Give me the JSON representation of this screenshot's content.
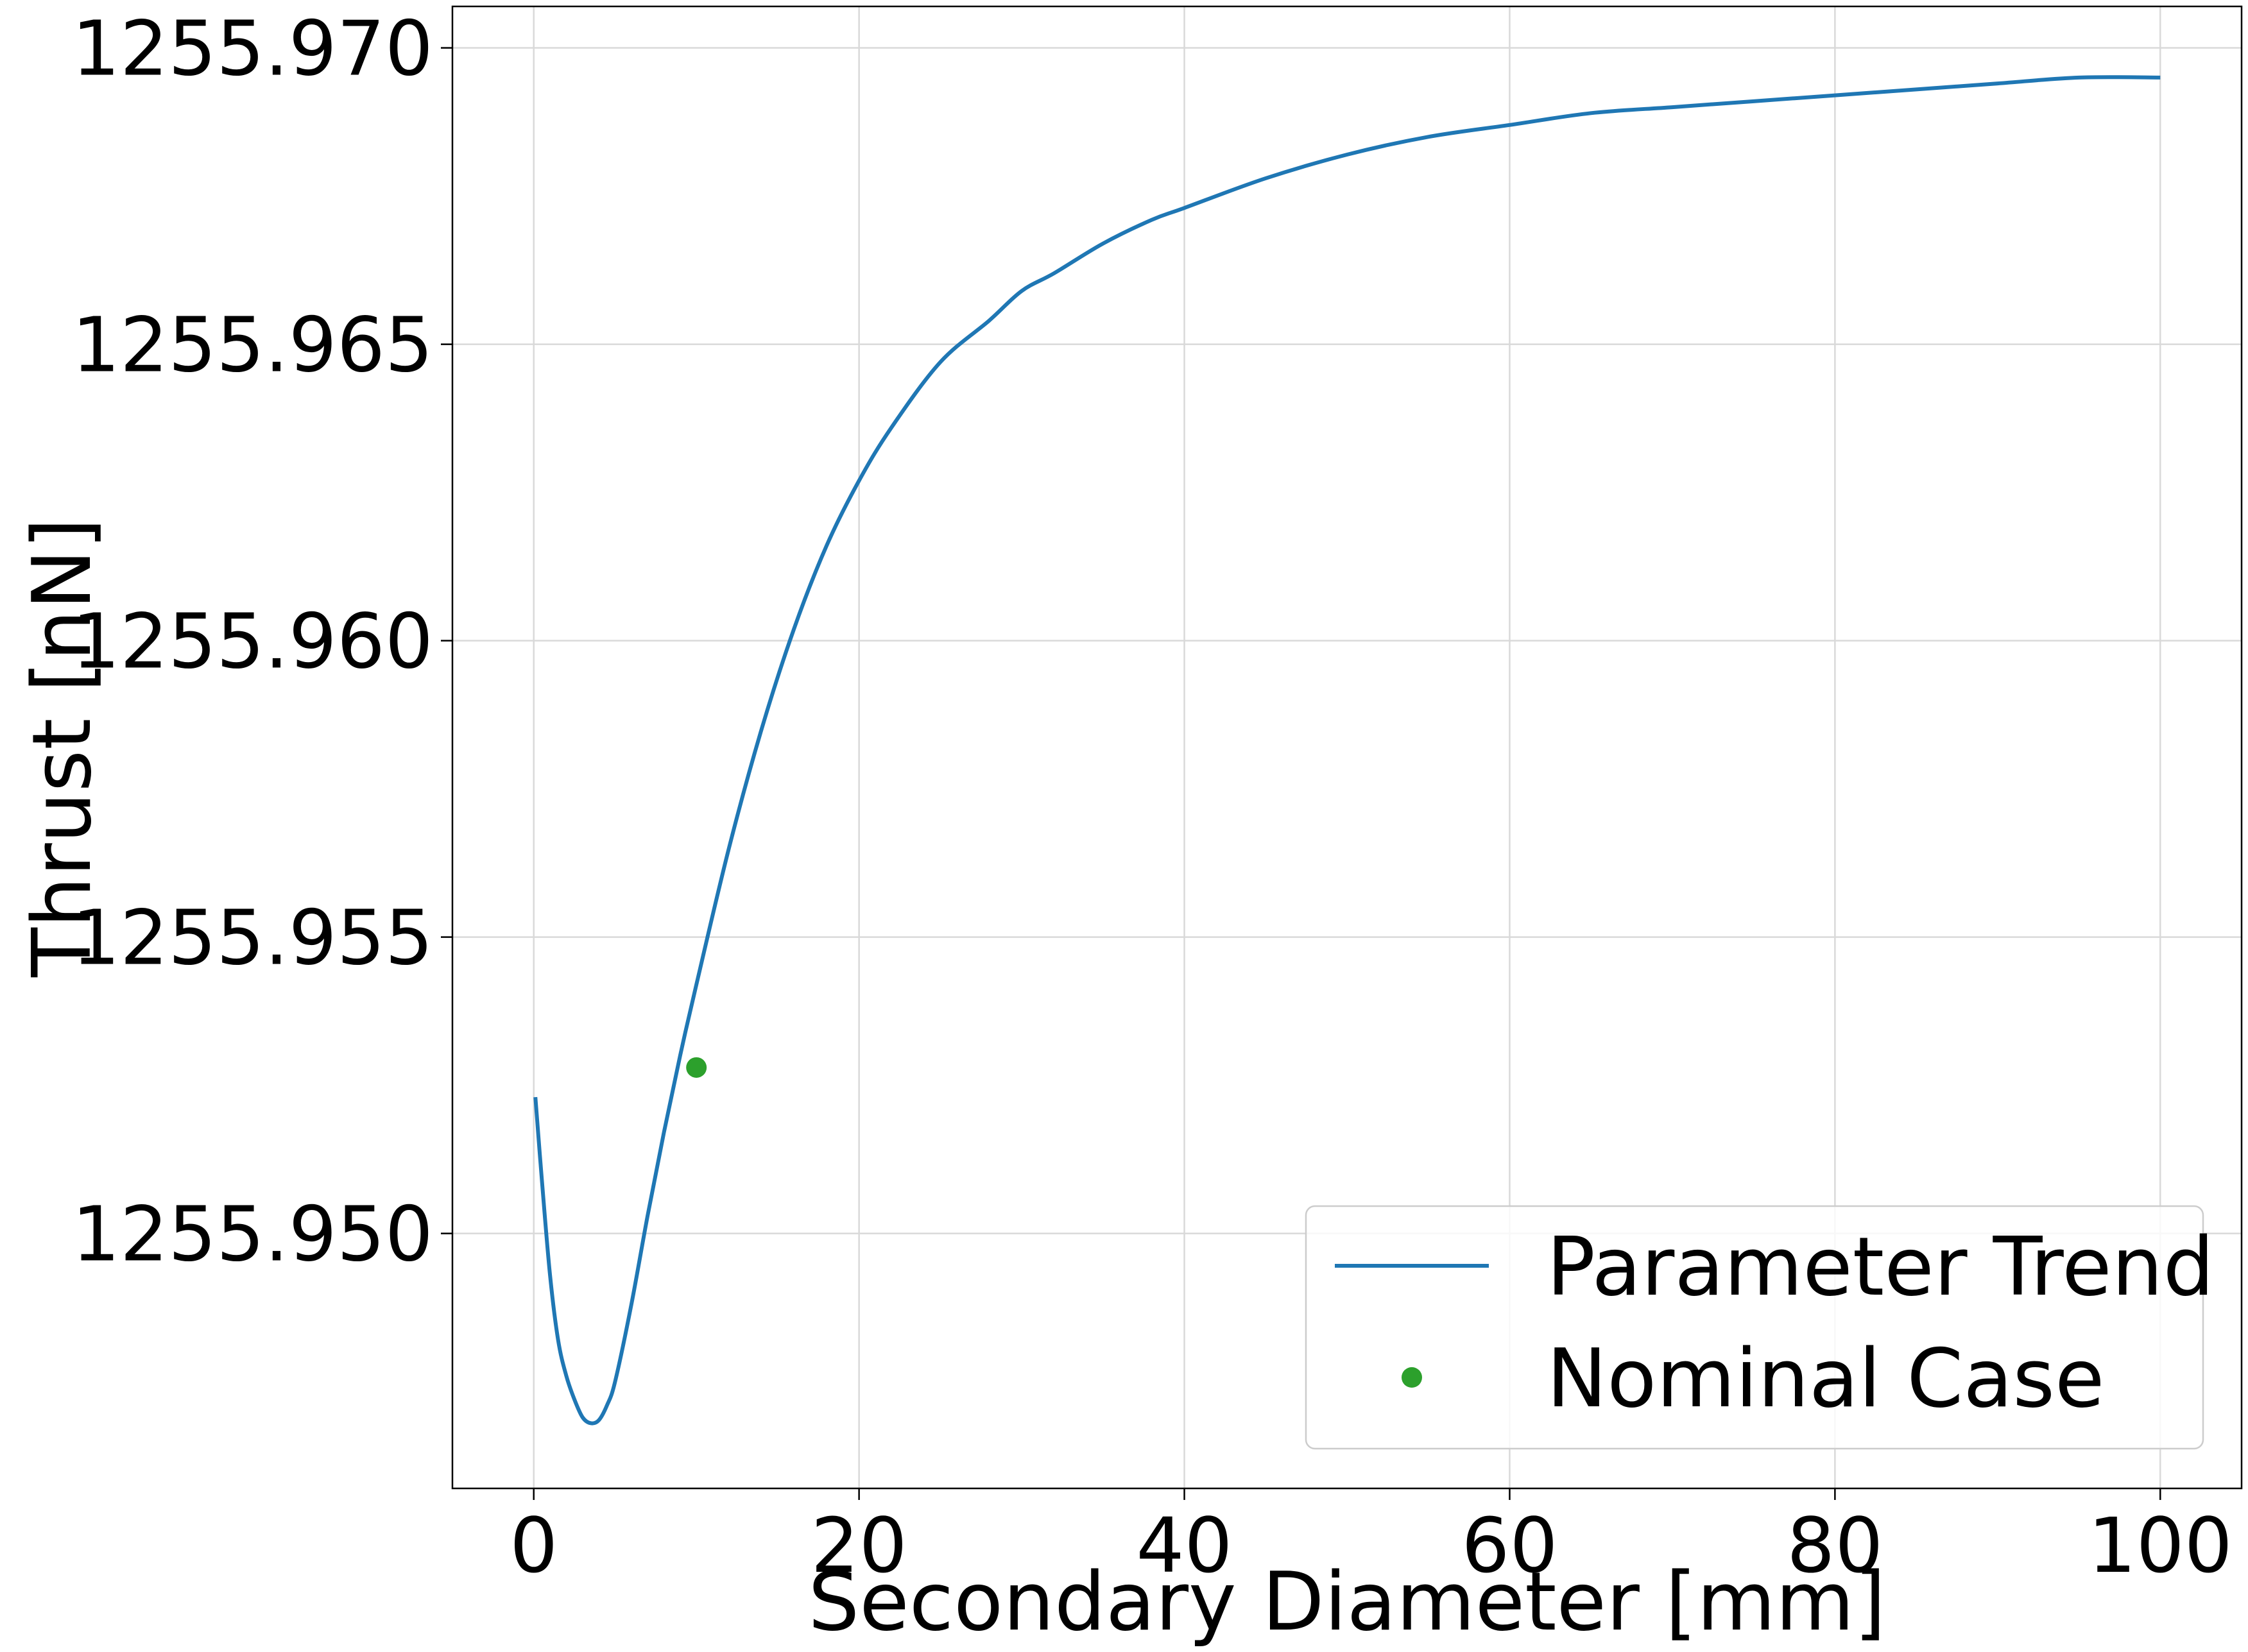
{
  "chart_data": {
    "type": "line",
    "xlabel": "Secondary Diameter [mm]",
    "ylabel": "Thrust [nN]",
    "xlim": [
      -5,
      105
    ],
    "ylim": [
      1255.9457,
      1255.9707
    ],
    "xticks": [
      0,
      20,
      40,
      60,
      80,
      100
    ],
    "xtick_labels": [
      "0",
      "20",
      "40",
      "60",
      "80",
      "100"
    ],
    "yticks": [
      1255.95,
      1255.955,
      1255.96,
      1255.965,
      1255.97
    ],
    "ytick_labels": [
      "1255.950",
      "1255.955",
      "1255.960",
      "1255.965",
      "1255.970"
    ],
    "grid": true,
    "legend": {
      "placement": "lower-right"
    },
    "colors": {
      "trend": "#1f77b4",
      "nominal": "#2ca02c"
    },
    "series": [
      {
        "name": "Parameter Trend",
        "kind": "line",
        "x": [
          0.1,
          0.5,
          1,
          1.5,
          2,
          2.5,
          3,
          3.5,
          4,
          4.5,
          5,
          6,
          7,
          8,
          9,
          10,
          12,
          14,
          16,
          18,
          20,
          22,
          25,
          28,
          30,
          32,
          35,
          38,
          40,
          45,
          50,
          55,
          60,
          65,
          70,
          75,
          80,
          85,
          90,
          95,
          100
        ],
        "y": [
          1255.9523,
          1255.9509,
          1255.9493,
          1255.9482,
          1255.9476,
          1255.9472,
          1255.9469,
          1255.9468,
          1255.94685,
          1255.9471,
          1255.9475,
          1255.9488,
          1255.9503,
          1255.9517,
          1255.953,
          1255.9542,
          1255.9565,
          1255.9585,
          1255.9602,
          1255.9616,
          1255.9627,
          1255.9636,
          1255.9647,
          1255.9654,
          1255.9659,
          1255.9662,
          1255.9667,
          1255.9671,
          1255.9673,
          1255.9678,
          1255.9682,
          1255.9685,
          1255.9687,
          1255.9689,
          1255.969,
          1255.9691,
          1255.9692,
          1255.9693,
          1255.9694,
          1255.9695,
          1255.9695
        ]
      },
      {
        "name": "Nominal Case",
        "kind": "point",
        "x": [
          10
        ],
        "y": [
          1255.9528
        ]
      }
    ]
  }
}
